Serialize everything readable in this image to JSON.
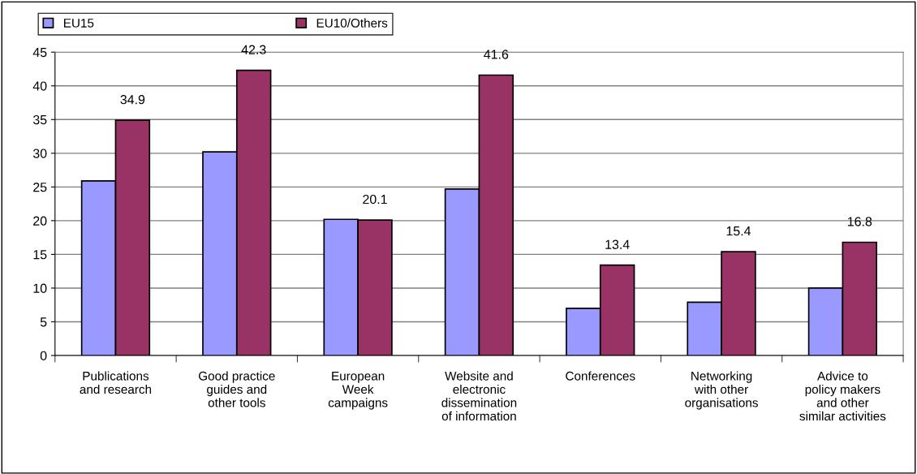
{
  "chart_data": {
    "type": "bar",
    "categories": [
      "Publications\nand research",
      "Good practice\nguides and\nother tools",
      "European\nWeek\ncampaigns",
      "Website and\nelectronic\ndissemination\nof information",
      "Conferences",
      "Networking\nwith other\norganisations",
      "Advice to\npolicy makers\nand other\nsimilar activities"
    ],
    "series": [
      {
        "name": "EU15",
        "color": "#9999ff",
        "values": [
          25.9,
          30.2,
          20.2,
          24.7,
          7.0,
          7.9,
          10.0
        ]
      },
      {
        "name": "EU10/Others",
        "color": "#993366",
        "values": [
          34.9,
          42.3,
          20.1,
          41.6,
          13.4,
          15.4,
          16.8
        ],
        "value_labels": [
          "34.9",
          "42.3",
          "20.1",
          "41.6",
          "13.4",
          "15.4",
          "16.8"
        ]
      }
    ],
    "ylim": [
      0,
      45
    ],
    "yticks": [
      0,
      5,
      10,
      15,
      20,
      25,
      30,
      35,
      40,
      45
    ],
    "grid": "y",
    "legend": "top"
  }
}
